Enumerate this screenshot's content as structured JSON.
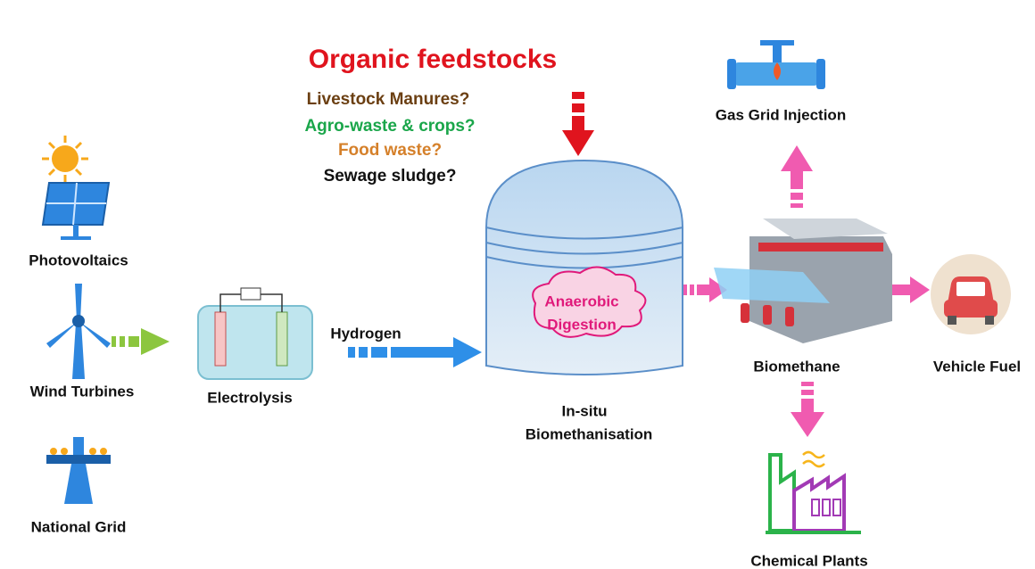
{
  "title": "Organic feedstocks",
  "feedstocks": [
    "Livestock Manures?",
    "Agro-waste & crops?",
    "Food waste?",
    "Sewage sludge?"
  ],
  "sources": [
    "Photovoltaics",
    "Wind Turbines",
    "National Grid"
  ],
  "electrolysis": "Electrolysis",
  "hydrogen": "Hydrogen",
  "digester": {
    "lines": [
      "Anaerobic",
      "Digestion"
    ],
    "caption": [
      "In-situ",
      "Biomethanisation"
    ]
  },
  "outputs": {
    "product": "Biomethane",
    "gas_grid": "Gas Grid Injection",
    "vehicle": "Vehicle Fuel",
    "chemical": "Chemical Plants"
  }
}
